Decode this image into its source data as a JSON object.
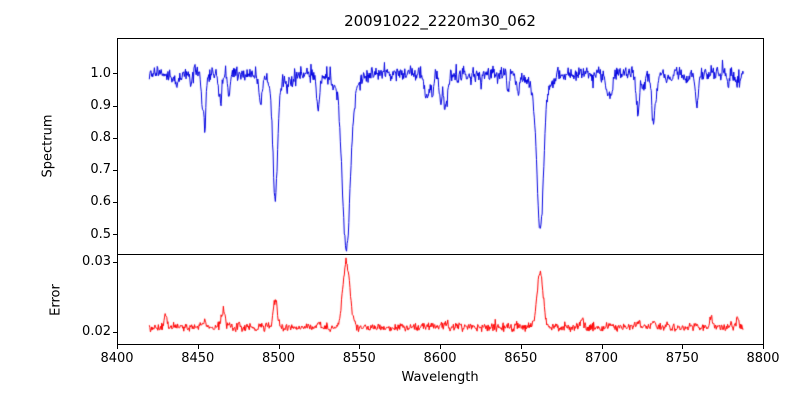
{
  "chart_data": {
    "type": "line",
    "title": "20091022_2220m30_062",
    "xlabel": "Wavelength",
    "xlim": [
      8400,
      8800
    ],
    "x_data_range": [
      8420,
      8788
    ],
    "xticks": [
      {
        "v": 8400,
        "label": "8400"
      },
      {
        "v": 8450,
        "label": "8450"
      },
      {
        "v": 8500,
        "label": "8500"
      },
      {
        "v": 8550,
        "label": "8550"
      },
      {
        "v": 8600,
        "label": "8600"
      },
      {
        "v": 8650,
        "label": "8650"
      },
      {
        "v": 8700,
        "label": "8700"
      },
      {
        "v": 8750,
        "label": "8750"
      },
      {
        "v": 8800,
        "label": "8800"
      }
    ],
    "panels": [
      {
        "name": "spectrum",
        "ylabel": "Spectrum",
        "color": "#0000e0",
        "ylim": [
          0.435,
          1.11
        ],
        "yticks": [
          {
            "v": 1.0,
            "label": "1.0"
          },
          {
            "v": 0.9,
            "label": "0.9"
          },
          {
            "v": 0.8,
            "label": "0.8"
          },
          {
            "v": 0.7,
            "label": "0.7"
          },
          {
            "v": 0.6,
            "label": "0.6"
          },
          {
            "v": 0.5,
            "label": "0.5"
          }
        ],
        "continuum_level": 1.0,
        "noise_std": 0.011,
        "absorption_lines": [
          {
            "center": 8498,
            "depth": 0.385,
            "sigma": 1.4
          },
          {
            "center": 8542,
            "depth": 0.555,
            "sigma": 2.4
          },
          {
            "center": 8662,
            "depth": 0.49,
            "sigma": 2.0
          }
        ]
      },
      {
        "name": "error",
        "ylabel": "Error",
        "color": "#ff0000",
        "ylim": [
          0.0181,
          0.031
        ],
        "yticks": [
          {
            "v": 0.03,
            "label": "0.03"
          },
          {
            "v": 0.02,
            "label": "0.02"
          }
        ],
        "baseline": 0.0206,
        "noise_std": 0.00028,
        "peaks": [
          {
            "center": 8430,
            "amp": 0.0018,
            "sigma": 0.9
          },
          {
            "center": 8466,
            "amp": 0.0024,
            "sigma": 1.0
          },
          {
            "center": 8498,
            "amp": 0.0038,
            "sigma": 1.3
          },
          {
            "center": 8542,
            "amp": 0.0093,
            "sigma": 2.2
          },
          {
            "center": 8662,
            "amp": 0.0078,
            "sigma": 1.9
          },
          {
            "center": 8688,
            "amp": 0.0012,
            "sigma": 0.9
          },
          {
            "center": 8768,
            "amp": 0.0016,
            "sigma": 0.9
          },
          {
            "center": 8784,
            "amp": 0.0013,
            "sigma": 0.8
          }
        ]
      }
    ]
  }
}
